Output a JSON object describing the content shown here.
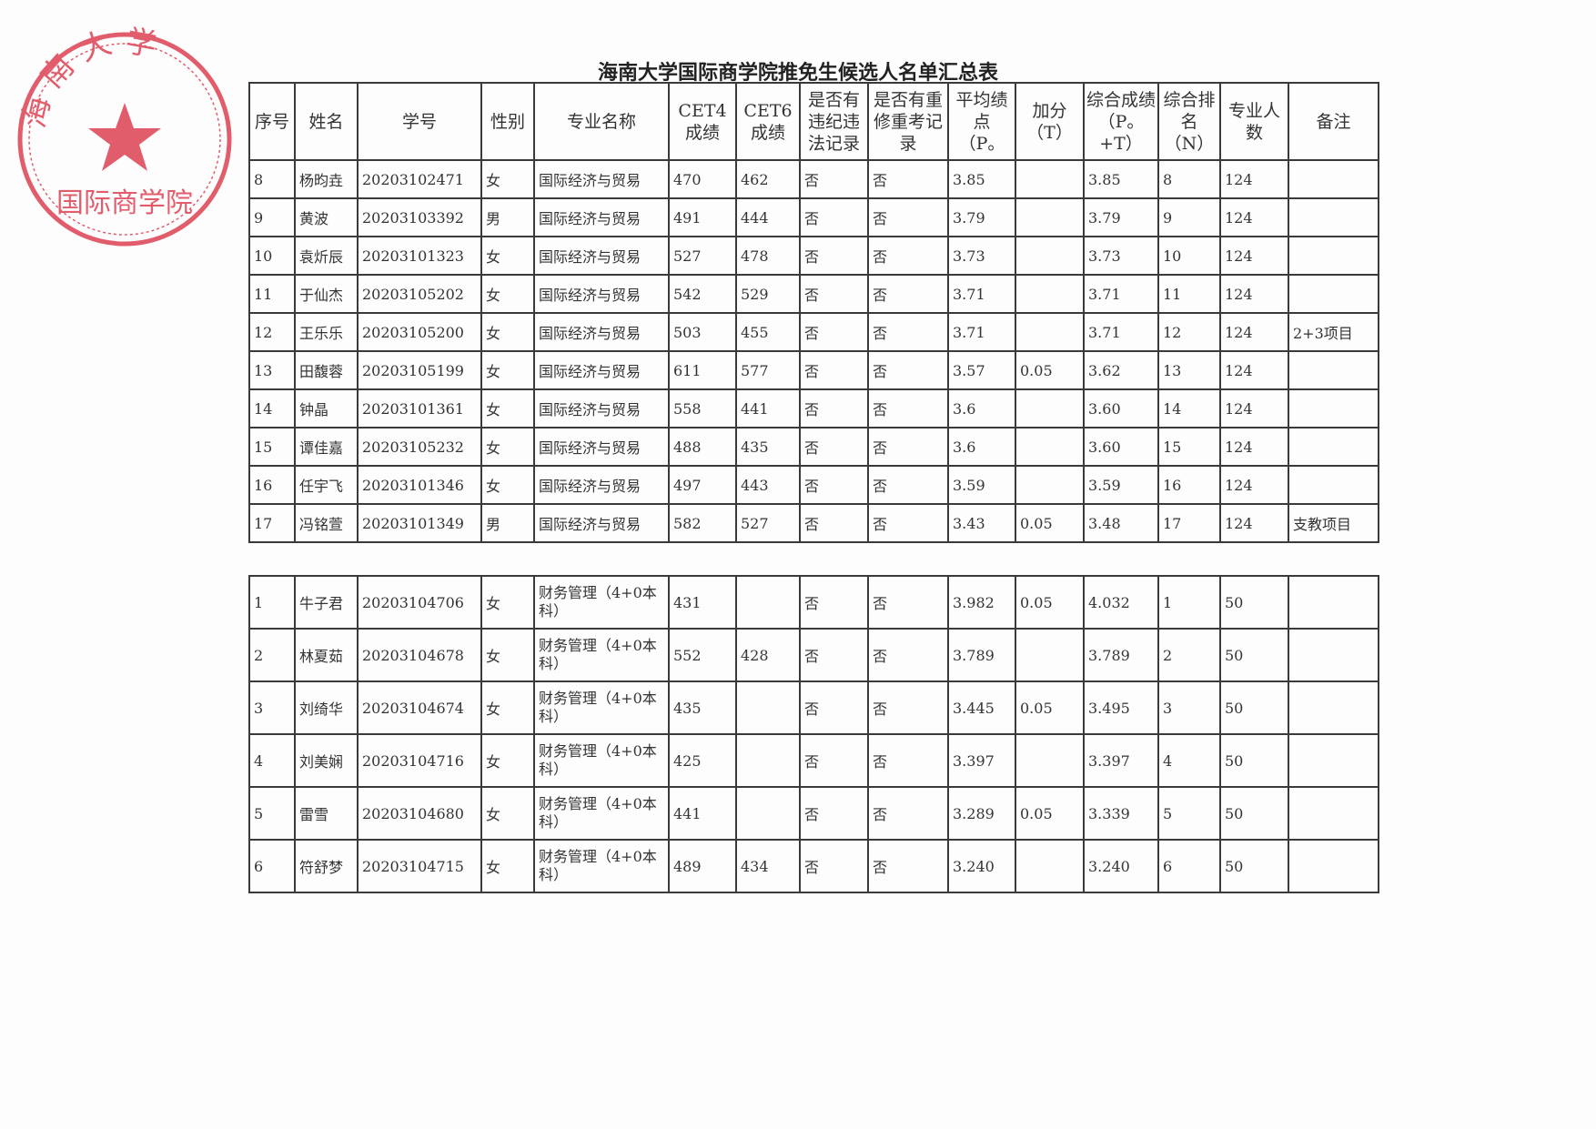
{
  "title": "海南大学国际商学院推免生候选人名单汇总表",
  "stamp": {
    "text": "海南大学国际商学院",
    "color": "#d9283c"
  },
  "headers": [
    "序号",
    "姓名",
    "学号",
    "性别",
    "专业名称",
    "CET4成绩",
    "CET6成绩",
    "是否有违纪违法记录",
    "是否有重修重考记录",
    "平均绩点（P。",
    "加分（T）",
    "综合成绩（P。+T）",
    "综合排名（N）",
    "专业人数",
    "备注"
  ],
  "table1": [
    [
      "8",
      "杨昀垚",
      "20203102471",
      "女",
      "国际经济与贸易",
      "470",
      "462",
      "否",
      "否",
      "3.85",
      "",
      "3.85",
      "8",
      "124",
      ""
    ],
    [
      "9",
      "黄波",
      "20203103392",
      "男",
      "国际经济与贸易",
      "491",
      "444",
      "否",
      "否",
      "3.79",
      "",
      "3.79",
      "9",
      "124",
      ""
    ],
    [
      "10",
      "袁炘辰",
      "20203101323",
      "女",
      "国际经济与贸易",
      "527",
      "478",
      "否",
      "否",
      "3.73",
      "",
      "3.73",
      "10",
      "124",
      ""
    ],
    [
      "11",
      "于仙杰",
      "20203105202",
      "女",
      "国际经济与贸易",
      "542",
      "529",
      "否",
      "否",
      "3.71",
      "",
      "3.71",
      "11",
      "124",
      ""
    ],
    [
      "12",
      "王乐乐",
      "20203105200",
      "女",
      "国际经济与贸易",
      "503",
      "455",
      "否",
      "否",
      "3.71",
      "",
      "3.71",
      "12",
      "124",
      "2+3项目"
    ],
    [
      "13",
      "田馥蓉",
      "20203105199",
      "女",
      "国际经济与贸易",
      "611",
      "577",
      "否",
      "否",
      "3.57",
      "0.05",
      "3.62",
      "13",
      "124",
      ""
    ],
    [
      "14",
      "钟晶",
      "20203101361",
      "女",
      "国际经济与贸易",
      "558",
      "441",
      "否",
      "否",
      "3.6",
      "",
      "3.60",
      "14",
      "124",
      ""
    ],
    [
      "15",
      "谭佳嘉",
      "20203105232",
      "女",
      "国际经济与贸易",
      "488",
      "435",
      "否",
      "否",
      "3.6",
      "",
      "3.60",
      "15",
      "124",
      ""
    ],
    [
      "16",
      "任宇飞",
      "20203101346",
      "女",
      "国际经济与贸易",
      "497",
      "443",
      "否",
      "否",
      "3.59",
      "",
      "3.59",
      "16",
      "124",
      ""
    ],
    [
      "17",
      "冯铭萱",
      "20203101349",
      "男",
      "国际经济与贸易",
      "582",
      "527",
      "否",
      "否",
      "3.43",
      "0.05",
      "3.48",
      "17",
      "124",
      "支教项目"
    ]
  ],
  "table2": [
    [
      "1",
      "牛子君",
      "20203104706",
      "女",
      "财务管理（4+0本科）",
      "431",
      "",
      "否",
      "否",
      "3.982",
      "0.05",
      "4.032",
      "1",
      "50",
      ""
    ],
    [
      "2",
      "林夏茹",
      "20203104678",
      "女",
      "财务管理（4+0本科）",
      "552",
      "428",
      "否",
      "否",
      "3.789",
      "",
      "3.789",
      "2",
      "50",
      ""
    ],
    [
      "3",
      "刘绮华",
      "20203104674",
      "女",
      "财务管理（4+0本科）",
      "435",
      "",
      "否",
      "否",
      "3.445",
      "0.05",
      "3.495",
      "3",
      "50",
      ""
    ],
    [
      "4",
      "刘美娴",
      "20203104716",
      "女",
      "财务管理（4+0本科）",
      "425",
      "",
      "否",
      "否",
      "3.397",
      "",
      "3.397",
      "4",
      "50",
      ""
    ],
    [
      "5",
      "雷雪",
      "20203104680",
      "女",
      "财务管理（4+0本科）",
      "441",
      "",
      "否",
      "否",
      "3.289",
      "0.05",
      "3.339",
      "5",
      "50",
      ""
    ],
    [
      "6",
      "符舒梦",
      "20203104715",
      "女",
      "财务管理（4+0本科）",
      "489",
      "434",
      "否",
      "否",
      "3.240",
      "",
      "3.240",
      "6",
      "50",
      ""
    ]
  ]
}
